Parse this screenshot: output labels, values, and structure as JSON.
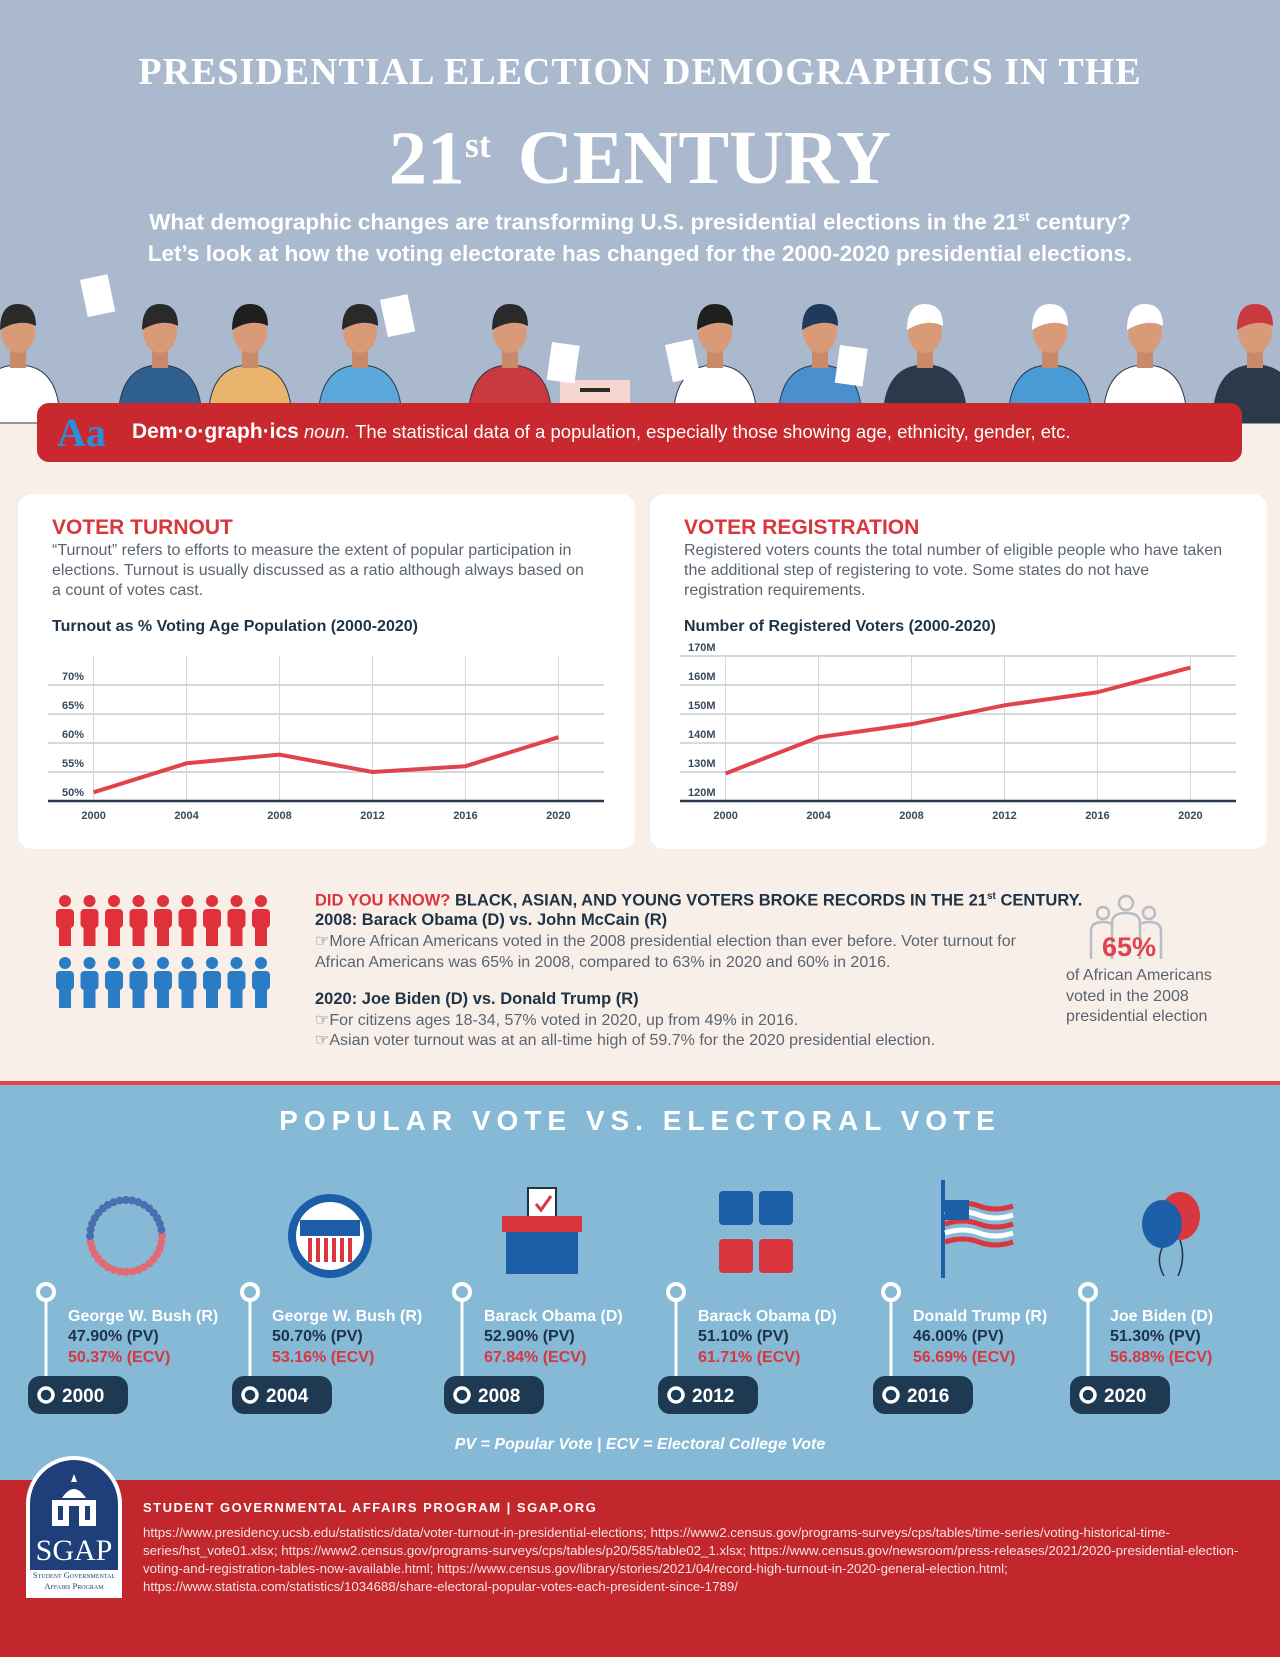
{
  "header": {
    "title_line1": "PRESIDENTIAL ELECTION DEMOGRAPHICS IN THE",
    "title_number": "21",
    "title_sup": "st",
    "title_word": "CENTURY",
    "intro_line1_a": "What demographic changes are transforming U.S. presidential elections in the 21",
    "intro_line1_sup": "st",
    "intro_line1_b": " century?",
    "intro_line2": "Let’s look at how the voting electorate has changed for the 2000-2020 presidential elections."
  },
  "definition": {
    "icon": "Aa",
    "word": "Dem·o·graph·ics",
    "part_of_speech": "noun.",
    "text": "The statistical data of a population, especially those showing age, ethnicity, gender, etc."
  },
  "panels": [
    {
      "heading": "VOTER TURNOUT",
      "description": "“Turnout” refers to efforts to measure the extent of popular participation in elections. Turnout is usually discussed as a ratio although always based on a count of votes cast."
    },
    {
      "heading": "VOTER REGISTRATION",
      "description": "Registered voters counts the total number of eligible people who have taken the additional step of registering to vote. Some states do not have registration requirements."
    }
  ],
  "chart_data": [
    {
      "type": "line",
      "title": "Turnout as % Voting Age Population (2000-2020)",
      "categories": [
        "2000",
        "2004",
        "2008",
        "2012",
        "2016",
        "2020"
      ],
      "values": [
        51.5,
        56.5,
        58,
        55,
        56,
        61
      ],
      "color": "#e0434b",
      "ylim": [
        50,
        75
      ],
      "yticks": [
        {
          "value": 50,
          "label": "50%"
        },
        {
          "value": 55,
          "label": "55%"
        },
        {
          "value": 60,
          "label": "60%"
        },
        {
          "value": 65,
          "label": "65%"
        },
        {
          "value": 70,
          "label": "70%"
        }
      ],
      "grid": true
    },
    {
      "type": "line",
      "title": "Number of Registered Voters (2000-2020)",
      "categories": [
        "2000",
        "2004",
        "2008",
        "2012",
        "2016",
        "2020"
      ],
      "values": [
        129.5,
        142,
        146.5,
        153,
        157.5,
        166
      ],
      "color": "#e0434b",
      "ylim": [
        120,
        170
      ],
      "yticks": [
        {
          "value": 120,
          "label": "120M"
        },
        {
          "value": 130,
          "label": "130M"
        },
        {
          "value": 140,
          "label": "140M"
        },
        {
          "value": 150,
          "label": "150M"
        },
        {
          "value": 160,
          "label": "160M"
        },
        {
          "value": 170,
          "label": "170M"
        }
      ],
      "grid": true
    }
  ],
  "did_you_know": {
    "lead": "DID YOU KNOW?",
    "headline_a": " BLACK, ASIAN, AND YOUNG VOTERS BROKE RECORDS IN THE 21",
    "headline_sup": "st",
    "headline_b": " CENTURY.",
    "sub1": "2008: Barack Obama (D) vs. John McCain (R)",
    "bullet1": "☞More African Americans voted in the 2008  presidential election than ever before. Voter turnout for African Americans was 65% in 2008, compared to 63% in 2020 and 60% in 2016.",
    "sub2": "2020: Joe Biden (D) vs. Donald Trump (R)",
    "bullet2": "☞For citizens ages 18-34, 57% voted in 2020, up from 49% in 2016.",
    "bullet3": "☞Asian voter turnout was at an all-time high of 59.7% for the 2020 presidential election.",
    "stat": "65%",
    "stat_caption": "of African Americans voted in the 2008 presidential election"
  },
  "popular_vote": {
    "title": "POPULAR VOTE VS. ELECTORAL VOTE",
    "entries": [
      {
        "name": "George W. Bush (R)",
        "pv": "47.90% (PV)",
        "ecv": "50.37% (ECV)",
        "year": "2000"
      },
      {
        "name": "George W. Bush (R)",
        "pv": "50.70% (PV)",
        "ecv": "53.16% (ECV)",
        "year": "2004"
      },
      {
        "name": "Barack Obama (D)",
        "pv": "52.90% (PV)",
        "ecv": "67.84% (ECV)",
        "year": "2008"
      },
      {
        "name": "Barack Obama (D)",
        "pv": "51.10% (PV)",
        "ecv": "61.71% (ECV)",
        "year": "2012"
      },
      {
        "name": "Donald Trump (R)",
        "pv": "46.00% (PV)",
        "ecv": "56.69% (ECV)",
        "year": "2016"
      },
      {
        "name": "Joe Biden (D)",
        "pv": "51.30% (PV)",
        "ecv": "56.88% (ECV)",
        "year": "2020"
      }
    ],
    "footnote": "PV = Popular Vote | ECV = Electoral College Vote"
  },
  "footer": {
    "logo": "SGAP",
    "logo_caption": "Student Governmental Affairs Program",
    "org": "STUDENT GOVERNMENTAL AFFAIRS PROGRAM | SGAP.ORG",
    "sources": "https://www.presidency.ucsb.edu/statistics/data/voter-turnout-in-presidential-elections; https://www2.census.gov/programs-surveys/cps/tables/time-series/voting-historical-time-series/hst_vote01.xlsx; https://www2.census.gov/programs-surveys/cps/tables/p20/585/table02_1.xlsx; https://www.census.gov/newsroom/press-releases/2021/2020-presidential-election-voting-and-registration-tables-now-available.html; https://www.census.gov/library/stories/2021/04/record-high-turnout-in-2020-general-election.html; https://www.statista.com/statistics/1034688/share-electoral-popular-votes-each-president-since-1789/"
  }
}
